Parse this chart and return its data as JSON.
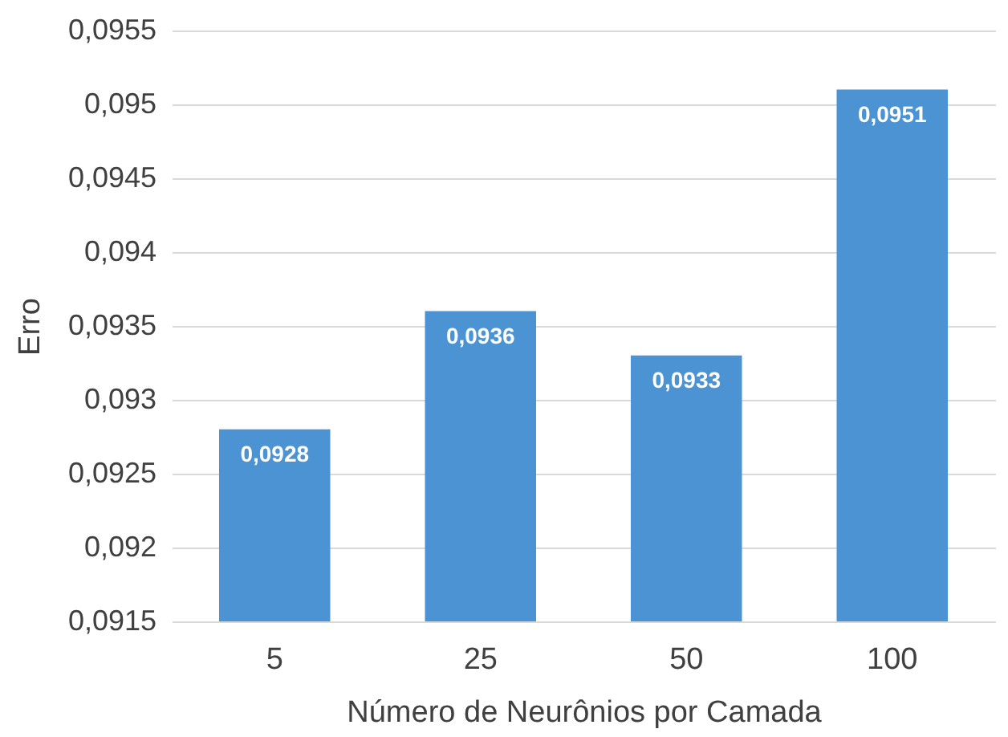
{
  "chart_data": {
    "type": "bar",
    "xlabel": "Número de Neurônios por Camada",
    "ylabel": "Erro",
    "categories": [
      "5",
      "25",
      "50",
      "100"
    ],
    "values": [
      0.0928,
      0.0936,
      0.0933,
      0.0951
    ],
    "value_labels": [
      "0,0928",
      "0,0936",
      "0,0933",
      "0,0951"
    ],
    "color": "#4b93d3",
    "ylim": [
      0.0915,
      0.0955
    ],
    "yticks": [
      {
        "value": 0.0915,
        "label": "0,0915"
      },
      {
        "value": 0.092,
        "label": "0,092"
      },
      {
        "value": 0.0925,
        "label": "0,0925"
      },
      {
        "value": 0.093,
        "label": "0,093"
      },
      {
        "value": 0.0935,
        "label": "0,0935"
      },
      {
        "value": 0.094,
        "label": "0,094"
      },
      {
        "value": 0.0945,
        "label": "0,0945"
      },
      {
        "value": 0.095,
        "label": "0,095"
      },
      {
        "value": 0.0955,
        "label": "0,0955"
      }
    ],
    "grid": "y"
  }
}
